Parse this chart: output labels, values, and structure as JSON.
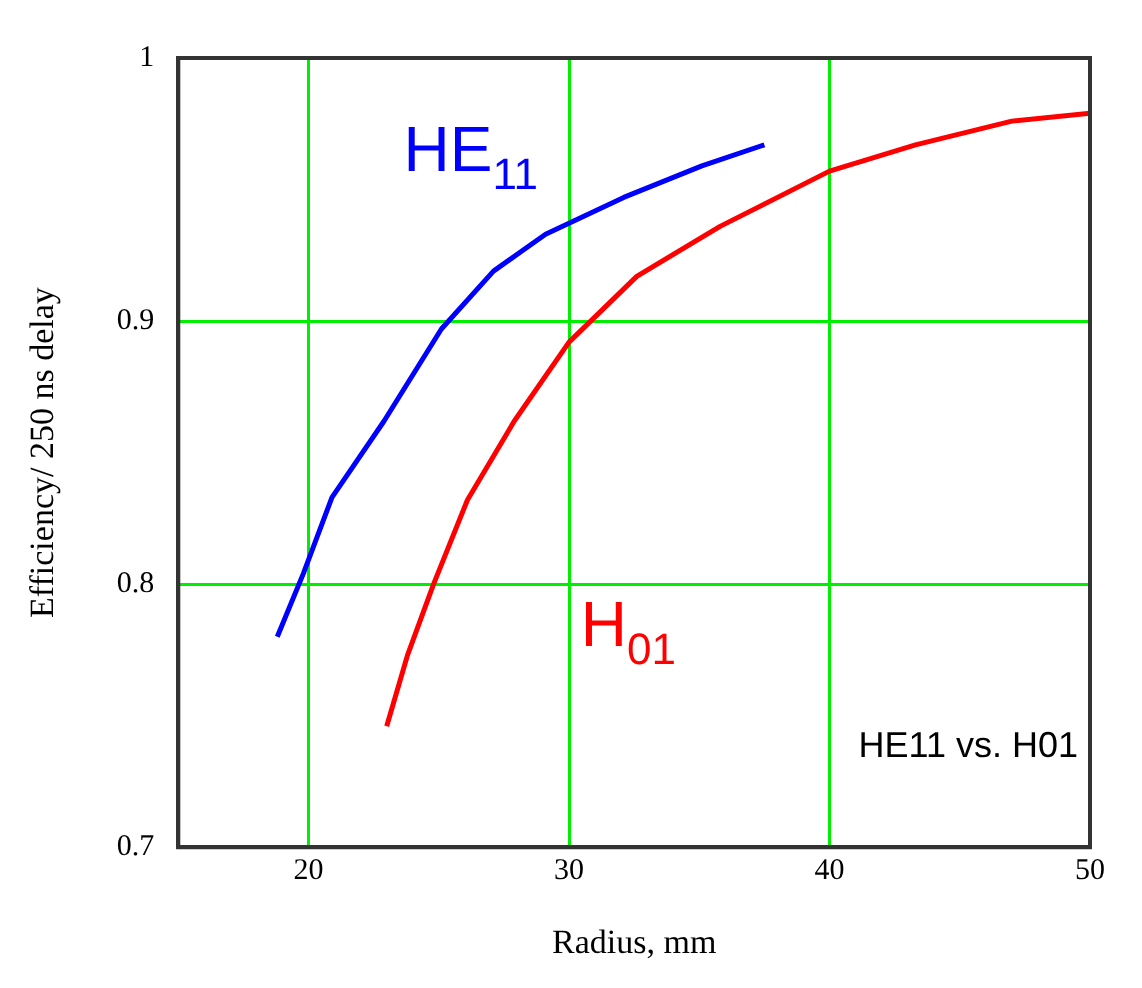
{
  "chart_data": {
    "type": "line",
    "xlabel": "Radius, mm",
    "ylabel": "Efficiency/ 250 ns delay",
    "xlim": [
      15,
      50
    ],
    "xticks": [
      20,
      30,
      40,
      50
    ],
    "ylim": [
      0.7,
      1
    ],
    "yticks": [
      0.7,
      0.8,
      0.9,
      1
    ],
    "grid": true,
    "legend": false,
    "marker": "none",
    "line_style": "solid",
    "annotations": [
      "HE11 vs. H01"
    ],
    "series": [
      {
        "name": "HE$_{11}$",
        "color": "#0000ff",
        "x": [
          18.8,
          19.8,
          20.9,
          22.9,
          25.1,
          27.1,
          29.1,
          32.1,
          35.1,
          37.5
        ],
        "values": [
          0.78,
          0.804,
          0.833,
          0.862,
          0.897,
          0.919,
          0.933,
          0.947,
          0.959,
          0.967
        ]
      },
      {
        "name": "H$_{01}$",
        "color": "#ff0000",
        "x": [
          23.0,
          23.8,
          24.8,
          26.1,
          27.9,
          30.0,
          32.6,
          35.8,
          40.0,
          43.3,
          47.0,
          50.0
        ],
        "values": [
          0.746,
          0.773,
          0.8,
          0.832,
          0.862,
          0.892,
          0.917,
          0.936,
          0.957,
          0.967,
          0.976,
          0.979
        ]
      }
    ]
  }
}
